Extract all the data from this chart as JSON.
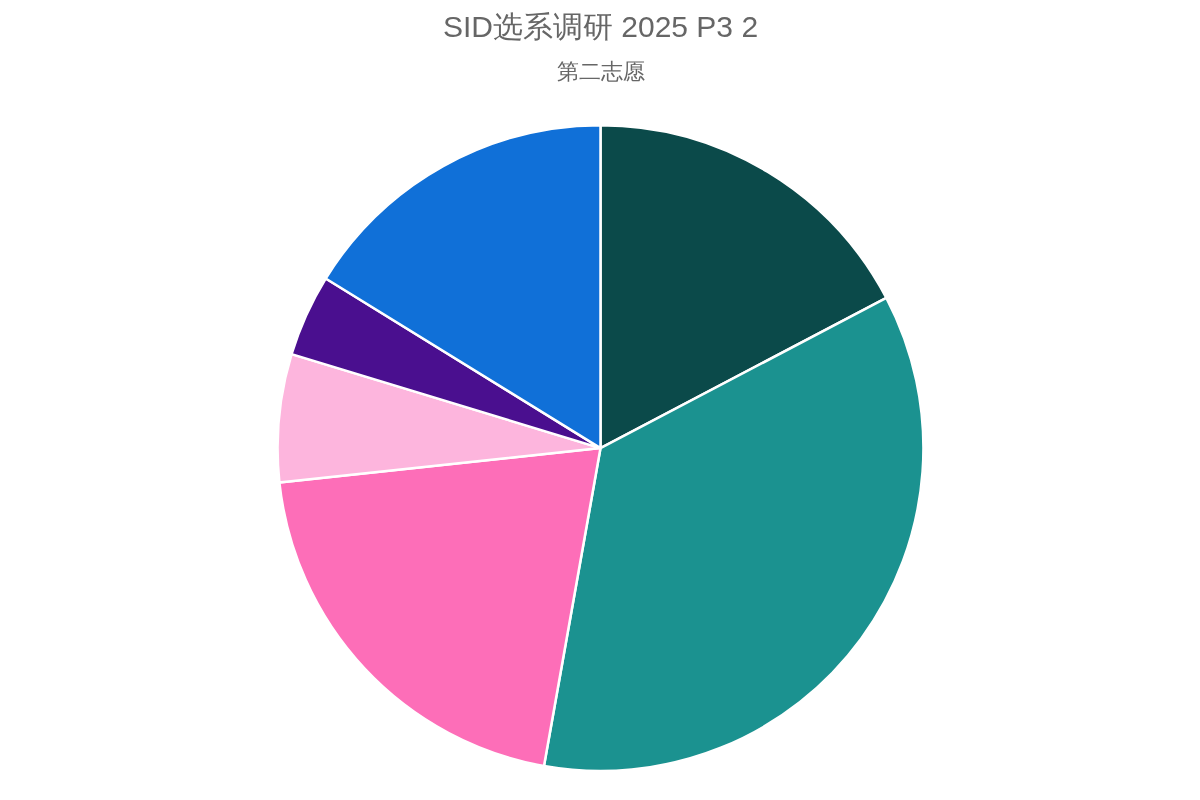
{
  "chart_data": {
    "type": "pie",
    "title": "SID选系调研 2025 P3 2",
    "subtitle": "第二志愿",
    "categories": [
      null,
      null,
      null,
      null,
      null,
      null
    ],
    "values": [
      17.3,
      35.5,
      20.5,
      6.4,
      4.1,
      16.2
    ],
    "colors": [
      "#0b4a4a",
      "#1b9290",
      "#fd6eb8",
      "#fdb5dd",
      "#4a0f8f",
      "#1070d8"
    ]
  }
}
